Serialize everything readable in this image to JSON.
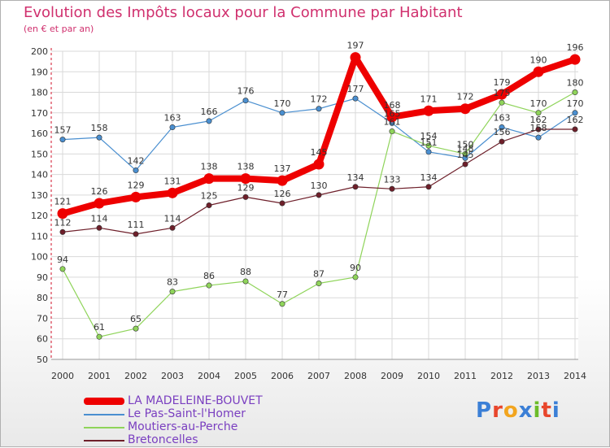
{
  "title": "Evolution des Impôts locaux pour la Commune par Habitant",
  "subtitle": "(en € et par an)",
  "logo_text": "Proxiti",
  "logo_colors": [
    "#3b7fd6",
    "#e8462c",
    "#f2a51f",
    "#3b7fd6",
    "#6cbc2a",
    "#e8462c",
    "#3b7fd6"
  ],
  "chart_data": {
    "type": "line",
    "title": "Evolution des Impôts locaux pour la Commune par Habitant",
    "ylabel": "(en € et par an)",
    "xlabel": "",
    "ylim": [
      50,
      200
    ],
    "yticks": [
      50,
      60,
      70,
      80,
      90,
      100,
      110,
      120,
      130,
      140,
      150,
      160,
      170,
      180,
      190,
      200
    ],
    "categories": [
      "2000",
      "2001",
      "2002",
      "2003",
      "2004",
      "2005",
      "2006",
      "2007",
      "2008",
      "2009",
      "2010",
      "2011",
      "2012",
      "2013",
      "2014"
    ],
    "grid": true,
    "legend_position": "bottom-left",
    "series": [
      {
        "name": "Le Pas-Saint-l'Homer",
        "color": "#4a8fd0",
        "values": [
          157,
          158,
          142,
          163,
          166,
          176,
          170,
          172,
          177,
          165,
          151,
          148,
          163,
          158,
          170
        ],
        "labels": [
          "157",
          "158",
          "142",
          "163",
          "166",
          "176",
          "170",
          "172",
          "177",
          "165",
          "151",
          "148",
          "163",
          "158",
          "170"
        ]
      },
      {
        "name": "Moutiers-au-Perche",
        "color": "#8fd45a",
        "values": [
          94,
          61,
          65,
          83,
          86,
          88,
          77,
          87,
          90,
          161,
          154,
          150,
          175,
          170,
          180
        ],
        "labels": [
          "94",
          "61",
          "65",
          "83",
          "86",
          "88",
          "77",
          "87",
          "90",
          "161",
          "154",
          "150",
          "175",
          "170",
          "180"
        ]
      },
      {
        "name": "Bretoncelles",
        "color": "#6e1f2a",
        "values": [
          112,
          114,
          111,
          114,
          125,
          129,
          126,
          130,
          134,
          133,
          134,
          145,
          156,
          162,
          162
        ],
        "labels": [
          "112",
          "114",
          "111",
          "114",
          "125",
          "129",
          "126",
          "130",
          "134",
          "133",
          "134",
          "145",
          "156",
          "162",
          "162"
        ]
      },
      {
        "name": "LA MADELEINE-BOUVET",
        "color": "#ee0000",
        "values": [
          121,
          126,
          129,
          131,
          138,
          138,
          137,
          145,
          197,
          168,
          171,
          172,
          179,
          190,
          196
        ],
        "labels": [
          "121",
          "126",
          "129",
          "131",
          "138",
          "138",
          "137",
          "145",
          "197",
          "168",
          "171",
          "172",
          "179",
          "190",
          "196"
        ]
      }
    ],
    "legend": [
      "LA MADELEINE-BOUVET",
      "Le Pas-Saint-l'Homer",
      "Moutiers-au-Perche",
      "Bretoncelles"
    ]
  }
}
